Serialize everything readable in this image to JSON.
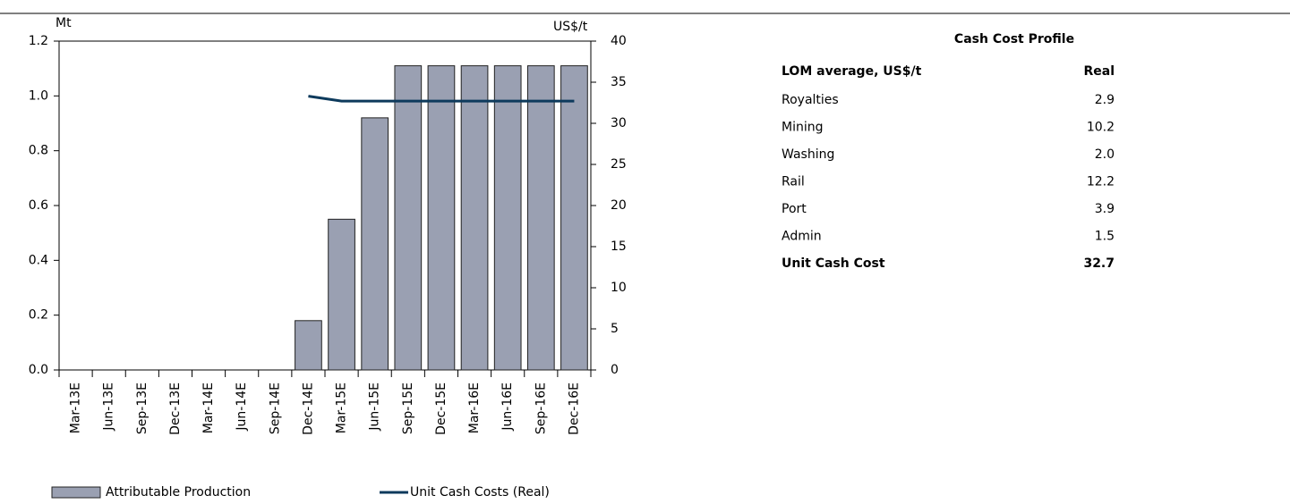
{
  "chart_data": {
    "type": "combo",
    "ylabel": "Mt",
    "y2label": "US$/t",
    "categories": [
      "Mar-13E",
      "Jun-13E",
      "Sep-13E",
      "Dec-13E",
      "Mar-14E",
      "Jun-14E",
      "Sep-14E",
      "Dec-14E",
      "Mar-15E",
      "Jun-15E",
      "Sep-15E",
      "Dec-15E",
      "Mar-16E",
      "Jun-16E",
      "Sep-16E",
      "Dec-16E"
    ],
    "series": [
      {
        "name": "Attributable Production",
        "type": "bar",
        "axis": "y",
        "color": "#9aa0b2",
        "values": [
          0,
          0,
          0,
          0,
          0,
          0,
          0,
          0.18,
          0.55,
          0.92,
          1.11,
          1.11,
          1.11,
          1.11,
          1.11,
          1.11
        ]
      },
      {
        "name": "Unit Cash Costs (Real)",
        "type": "line",
        "axis": "y2",
        "color": "#0d3a5c",
        "values": [
          null,
          null,
          null,
          null,
          null,
          null,
          null,
          33.3,
          32.7,
          32.7,
          32.7,
          32.7,
          32.7,
          32.7,
          32.7,
          32.7
        ]
      }
    ],
    "ylim": [
      0,
      1.2
    ],
    "yticks": [
      {
        "value": 0,
        "label": "0.0"
      },
      0.2,
      0.4,
      0.6,
      0.8,
      {
        "value": 1,
        "label": "1.0"
      },
      1.2
    ],
    "y2lim": [
      0,
      40
    ],
    "y2ticks": [
      0,
      5,
      10,
      15,
      20,
      25,
      30,
      35,
      40
    ],
    "legend": "bottom"
  },
  "table": {
    "title": "Cash Cost Profile",
    "header": [
      "LOM average, US$/t",
      "Real"
    ],
    "rows": [
      [
        "Royalties",
        "2.9"
      ],
      [
        "Mining",
        "10.2"
      ],
      [
        "Washing",
        "2.0"
      ],
      [
        "Rail",
        "12.2"
      ],
      [
        "Port",
        "3.9"
      ],
      [
        "Admin",
        "1.5"
      ]
    ],
    "total": [
      "Unit Cash Cost",
      "32.7"
    ]
  }
}
